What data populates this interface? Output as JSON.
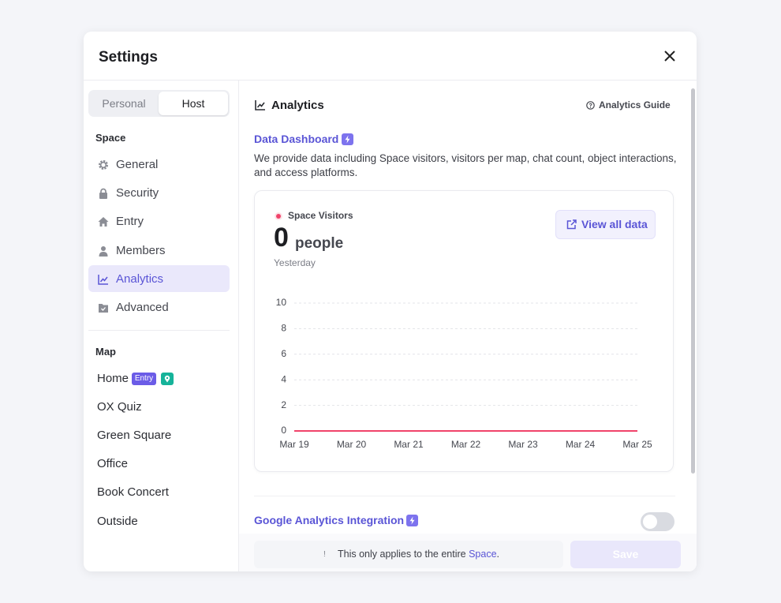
{
  "header": {
    "title": "Settings"
  },
  "sidebar": {
    "tabs": [
      "Personal",
      "Host"
    ],
    "space_heading": "Space",
    "space_items": [
      "General",
      "Security",
      "Entry",
      "Members",
      "Analytics",
      "Advanced"
    ],
    "map_heading": "Map",
    "map_items": [
      "Home",
      "OX Quiz",
      "Green Square",
      "Office",
      "Book Concert",
      "Outside"
    ],
    "home_badge": "Entry"
  },
  "content": {
    "section_title": "Analytics",
    "guide_link": "Analytics Guide",
    "dashboard_title": "Data Dashboard",
    "description": "We provide data including Space visitors, visitors per map, chat count, object interactions, and access platforms.",
    "metric_value": 0,
    "metric_unit": "people",
    "period": "Yesterday",
    "view_all": "View all data",
    "ga_title": "Google Analytics Integration"
  },
  "footer": {
    "notice_icon": "!",
    "notice_text": "This only applies to the entire",
    "notice_link": "Space",
    "notice_end": ".",
    "save": "Save"
  },
  "chart_data": {
    "type": "line",
    "categories": [
      "Mar 19",
      "Mar 20",
      "Mar 21",
      "Mar 22",
      "Mar 23",
      "Mar 24",
      "Mar 25"
    ],
    "series": [
      {
        "name": "Space Visitors",
        "color": "#f0436a",
        "values": [
          0,
          0,
          0,
          0,
          0,
          0,
          0
        ]
      }
    ],
    "ylim": [
      0,
      10
    ],
    "yticks": [
      0,
      2,
      4,
      6,
      8,
      10
    ],
    "grid": true
  }
}
